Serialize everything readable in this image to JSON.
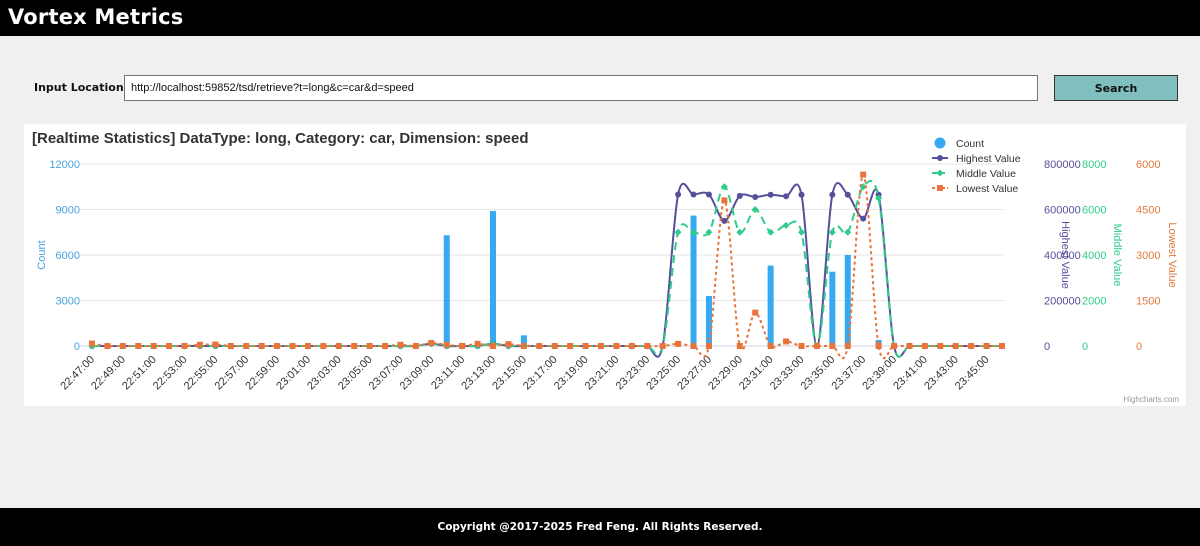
{
  "header": {
    "title": "Vortex Metrics"
  },
  "search": {
    "label": "Input Location:",
    "url": "http://localhost:59852/tsd/retrieve?t=long&c=car&d=speed",
    "button_label": "Search"
  },
  "footer": {
    "copyright": "Copyright @2017-2025 Fred Feng. All Rights Reserved."
  },
  "chart_data": {
    "type": "bar",
    "title": "[Realtime Statistics] DataType: long, Category: car, Dimension: speed",
    "credit": "Highcharts.com",
    "legend_position": "top-right",
    "grid": true,
    "categories": [
      "22:47:00",
      "22:48:00",
      "22:49:00",
      "22:50:00",
      "22:51:00",
      "22:52:00",
      "22:53:00",
      "22:54:00",
      "22:55:00",
      "22:56:00",
      "22:57:00",
      "22:58:00",
      "22:59:00",
      "23:00:00",
      "23:01:00",
      "23:02:00",
      "23:03:00",
      "23:04:00",
      "23:05:00",
      "23:06:00",
      "23:07:00",
      "23:08:00",
      "23:09:00",
      "23:10:00",
      "23:11:00",
      "23:12:00",
      "23:13:00",
      "23:14:00",
      "23:15:00",
      "23:16:00",
      "23:17:00",
      "23:18:00",
      "23:19:00",
      "23:20:00",
      "23:21:00",
      "23:22:00",
      "23:23:00",
      "23:24:00",
      "23:25:00",
      "23:26:00",
      "23:27:00",
      "23:28:00",
      "23:29:00",
      "23:30:00",
      "23:31:00",
      "23:32:00",
      "23:33:00",
      "23:34:00",
      "23:35:00",
      "23:36:00",
      "23:37:00",
      "23:38:00",
      "23:39:00",
      "23:40:00",
      "23:41:00",
      "23:42:00",
      "23:43:00",
      "23:44:00",
      "23:45:00",
      "23:46:00"
    ],
    "x_tick_labels": [
      "22:47:00",
      "22:49:00",
      "22:51:00",
      "22:53:00",
      "22:55:00",
      "22:57:00",
      "22:59:00",
      "23:01:00",
      "23:03:00",
      "23:05:00",
      "23:07:00",
      "23:09:00",
      "23:11:00",
      "23:13:00",
      "23:15:00",
      "23:17:00",
      "23:19:00",
      "23:21:00",
      "23:23:00",
      "23:25:00",
      "23:27:00",
      "23:29:00",
      "23:31:00",
      "23:33:00",
      "23:35:00",
      "23:37:00",
      "23:39:00",
      "23:41:00",
      "23:43:00",
      "23:45:00"
    ],
    "axes": [
      {
        "id": "count",
        "label": "Count",
        "side": "left",
        "min": 0,
        "max": 12000,
        "ticks": [
          "0",
          "3000",
          "6000",
          "9000",
          "12000"
        ],
        "color": "#4aa3df"
      },
      {
        "id": "highest",
        "label": "Highest Value",
        "side": "right",
        "min": 0,
        "max": 800000,
        "ticks": [
          "0",
          "200000",
          "400000",
          "600000",
          "800000"
        ],
        "color": "#55509a"
      },
      {
        "id": "middle",
        "label": "Middle Value",
        "side": "right",
        "min": 0,
        "max": 8000,
        "ticks": [
          "0",
          "2000",
          "4000",
          "6000",
          "8000"
        ],
        "color": "#2ecc8a"
      },
      {
        "id": "lowest",
        "label": "Lowest Value",
        "side": "right",
        "min": 0,
        "max": 6000,
        "ticks": [
          "0",
          "1500",
          "3000",
          "4500",
          "6000"
        ],
        "color": "#e07a3e"
      }
    ],
    "series": [
      {
        "name": "Count",
        "type": "column",
        "axis": "count",
        "color": "#36a9f0",
        "values": [
          0,
          0,
          0,
          0,
          0,
          0,
          0,
          0,
          0,
          0,
          0,
          0,
          0,
          0,
          0,
          0,
          0,
          0,
          0,
          0,
          0,
          0,
          0,
          7300,
          200,
          0,
          8900,
          0,
          700,
          0,
          0,
          0,
          0,
          0,
          0,
          0,
          0,
          0,
          0,
          8600,
          3300,
          0,
          0,
          0,
          5300,
          0,
          0,
          0,
          4900,
          6000,
          0,
          400,
          0,
          0,
          0,
          0,
          0,
          0,
          0,
          0
        ]
      },
      {
        "name": "Highest Value",
        "type": "spline",
        "axis": "highest",
        "color": "#55509a",
        "values": [
          0,
          0,
          0,
          0,
          0,
          0,
          0,
          0,
          0,
          0,
          0,
          0,
          0,
          0,
          0,
          0,
          0,
          0,
          0,
          0,
          0,
          0,
          10000,
          0,
          0,
          0,
          10000,
          0,
          0,
          0,
          0,
          0,
          0,
          0,
          0,
          0,
          0,
          0,
          666000,
          666000,
          666000,
          550000,
          660000,
          655000,
          665000,
          658000,
          665000,
          0,
          665000,
          665000,
          560000,
          665000,
          0,
          0,
          0,
          0,
          0,
          0,
          0,
          0
        ]
      },
      {
        "name": "Middle Value",
        "type": "spline-dashed",
        "axis": "middle",
        "color": "#2ecc8a",
        "values": [
          0,
          0,
          0,
          0,
          0,
          0,
          0,
          0,
          0,
          0,
          0,
          0,
          0,
          0,
          0,
          0,
          0,
          0,
          0,
          0,
          0,
          0,
          100,
          0,
          0,
          0,
          100,
          0,
          0,
          0,
          0,
          0,
          0,
          0,
          0,
          0,
          0,
          0,
          5000,
          5000,
          5000,
          7000,
          5000,
          6000,
          5000,
          5300,
          5000,
          0,
          5000,
          5000,
          7000,
          6500,
          0,
          0,
          0,
          0,
          0,
          0,
          0,
          0
        ]
      },
      {
        "name": "Lowest Value",
        "type": "spline-dotted",
        "axis": "lowest",
        "color": "#e8743b",
        "values": [
          80,
          0,
          0,
          0,
          0,
          0,
          0,
          40,
          50,
          0,
          0,
          0,
          0,
          0,
          0,
          0,
          0,
          0,
          0,
          0,
          40,
          0,
          100,
          40,
          0,
          70,
          0,
          60,
          0,
          0,
          0,
          0,
          0,
          0,
          0,
          0,
          0,
          0,
          70,
          0,
          0,
          4800,
          0,
          1100,
          0,
          150,
          0,
          0,
          0,
          0,
          5650,
          0,
          0,
          0,
          0,
          0,
          0,
          0,
          0,
          0
        ]
      }
    ]
  }
}
